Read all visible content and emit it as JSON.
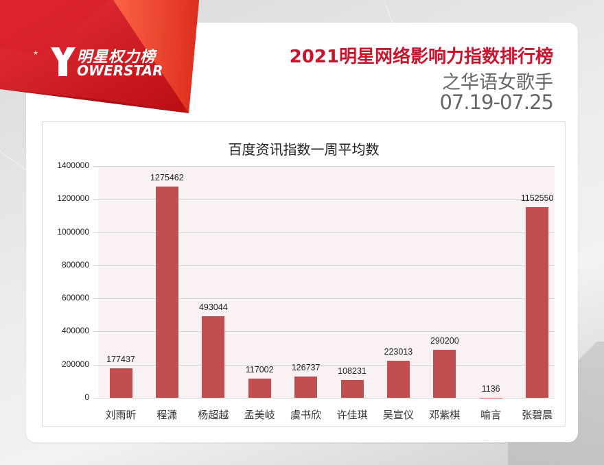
{
  "brand": {
    "logo_letter": "Y",
    "logo_cn": "明星权力榜",
    "logo_en": "OWERSTAR"
  },
  "header": {
    "title": "2021明星网络影响力指数排行榜",
    "subtitle": "之华语女歌手",
    "date_range": "07.19-07.25",
    "title_color": "#c8142d"
  },
  "chart_data": {
    "type": "bar",
    "title": "百度资讯指数一周平均数",
    "xlabel": "",
    "ylabel": "",
    "ylim": [
      0,
      1400000
    ],
    "yticks": [
      "0",
      "200000",
      "400000",
      "600000",
      "800000",
      "1000000",
      "1200000",
      "1400000"
    ],
    "grid": true,
    "legend": "none",
    "bar_color": "#c0504d",
    "categories": [
      "刘雨昕",
      "程潇",
      "杨超越",
      "孟美岐",
      "虞书欣",
      "许佳琪",
      "吴宣仪",
      "邓紫棋",
      "喻言",
      "张碧晨"
    ],
    "values": [
      177437,
      1275462,
      493044,
      117002,
      126737,
      108231,
      223013,
      290200,
      1136,
      1152550
    ],
    "value_labels": [
      "177437",
      "1275462",
      "493044",
      "117002",
      "126737",
      "108231",
      "223013",
      "290200",
      "1136",
      "1152550"
    ]
  }
}
